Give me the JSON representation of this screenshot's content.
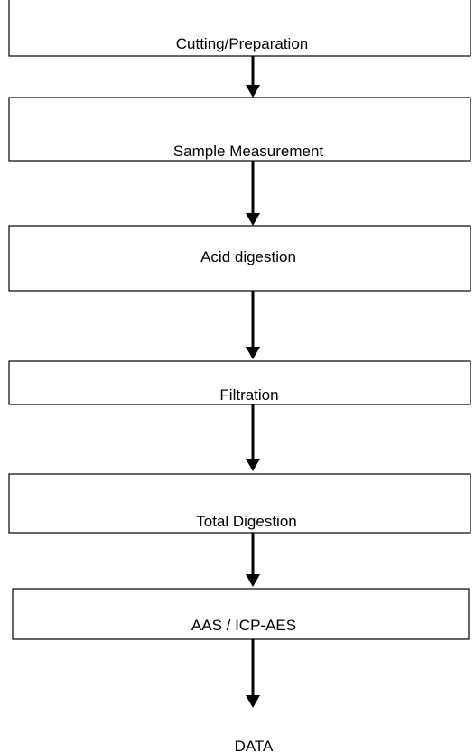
{
  "nodes": [
    {
      "label": "Cutting/Preparation"
    },
    {
      "label": "Sample Measurement"
    },
    {
      "label": "Acid digestion"
    },
    {
      "label": "Filtration"
    },
    {
      "label": "Total Digestion"
    },
    {
      "label": "AAS / ICP-AES"
    },
    {
      "label": "DATA"
    }
  ]
}
